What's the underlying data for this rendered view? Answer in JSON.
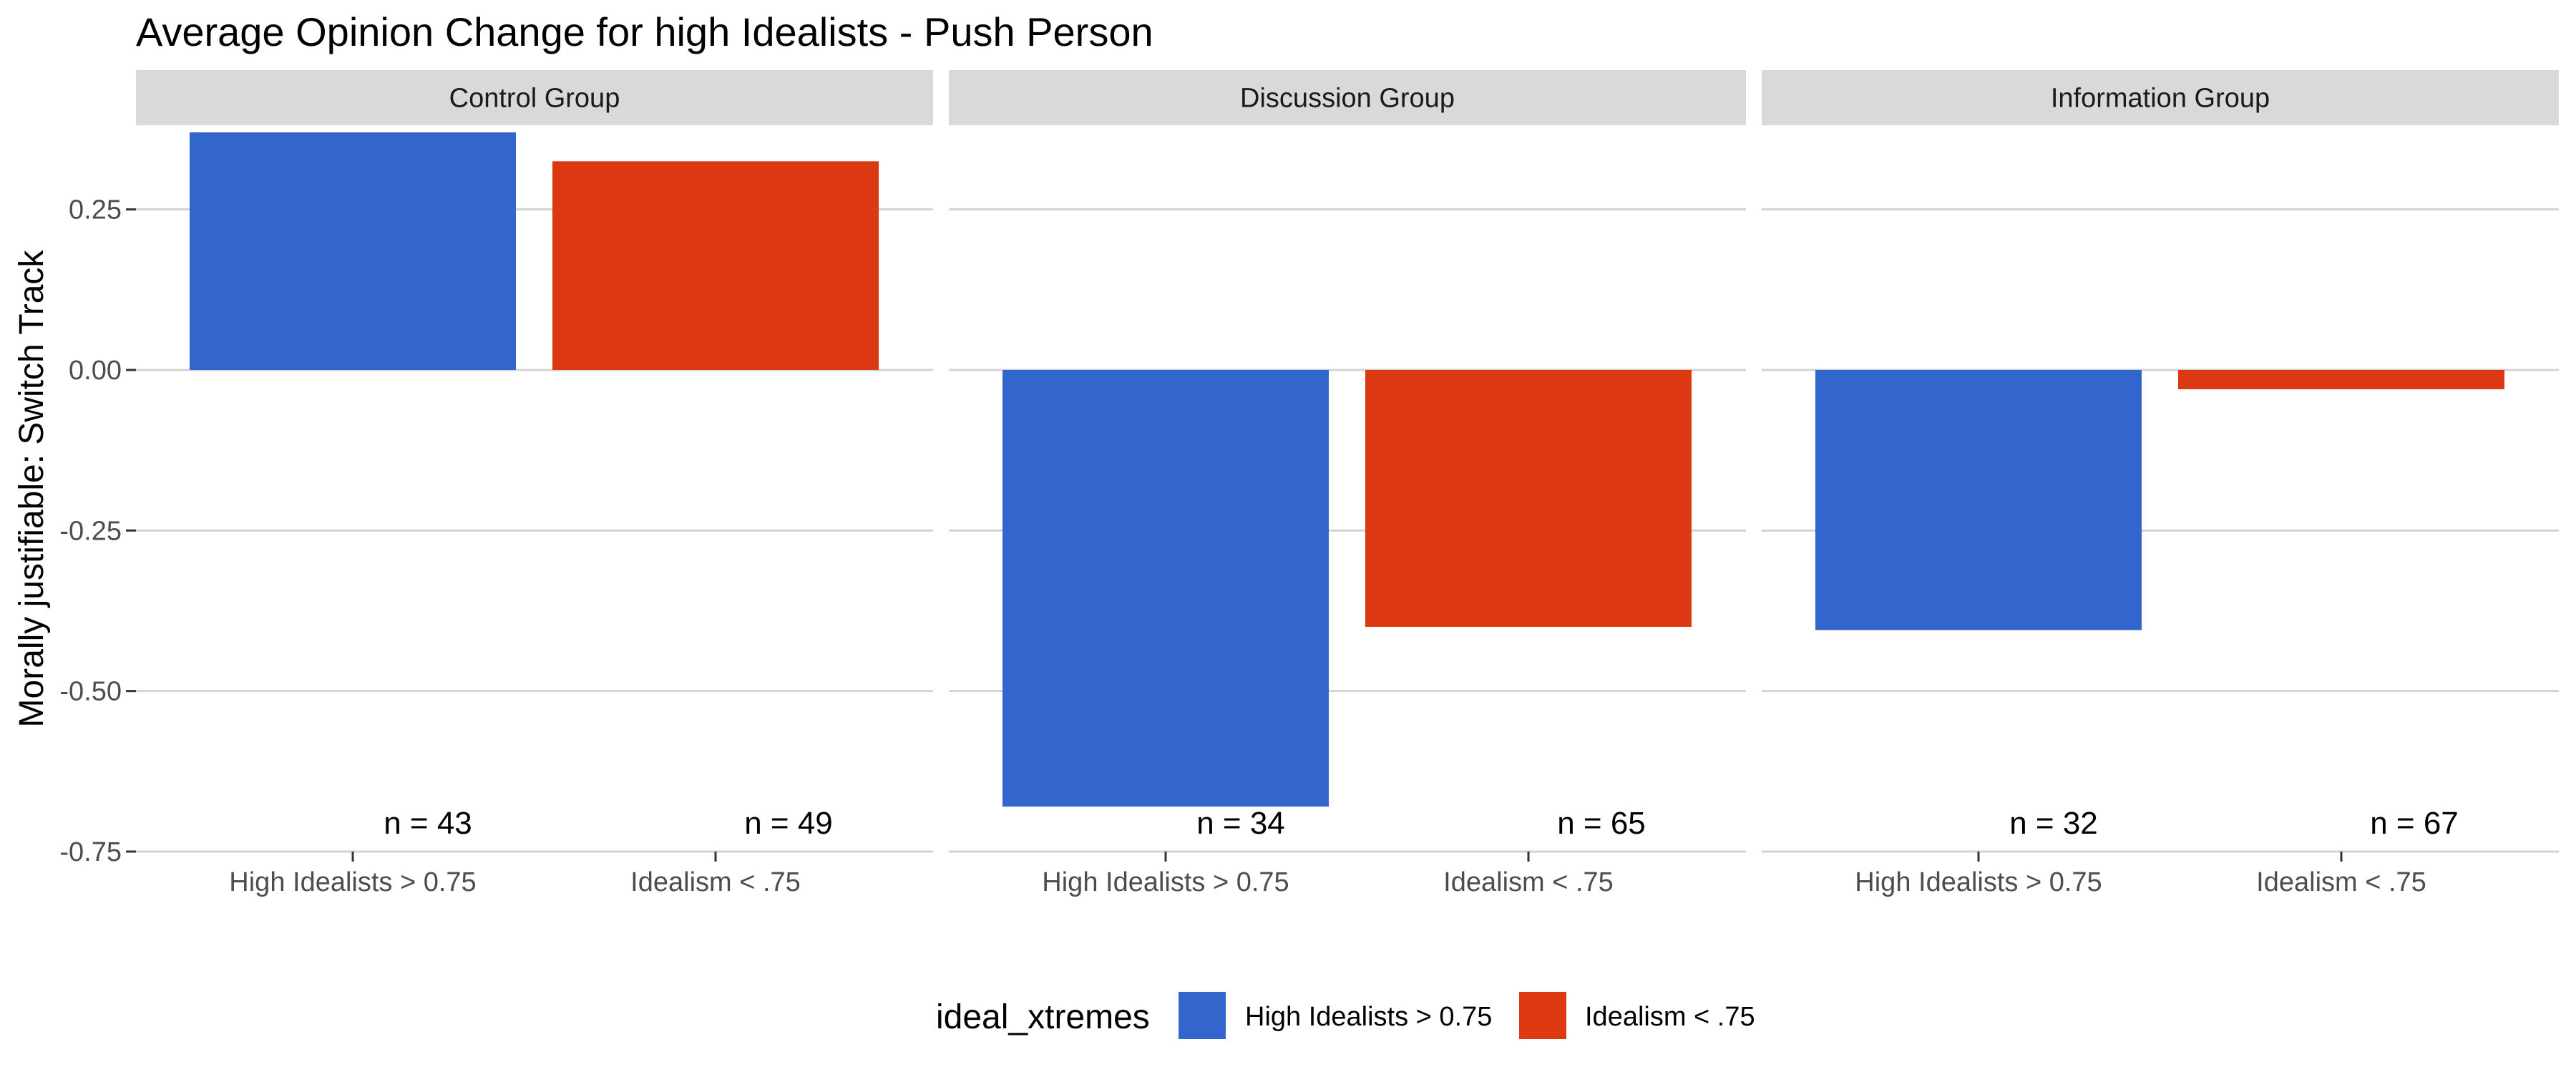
{
  "chart_data": {
    "type": "bar",
    "title": "Average Opinion Change for high Idealists - Push Person",
    "ylabel": "Morally justifiable: Switch Track",
    "xlabel": "",
    "ylim": [
      -0.75,
      0.38
    ],
    "yticks": [
      {
        "value": 0.25,
        "label": "0.25"
      },
      {
        "value": 0.0,
        "label": "0.00"
      },
      {
        "value": -0.25,
        "label": "-0.25"
      },
      {
        "value": -0.5,
        "label": "-0.50"
      },
      {
        "value": -0.75,
        "label": "-0.75"
      }
    ],
    "categories": [
      "High Idealists > 0.75",
      "Idealism < .75"
    ],
    "grid": true,
    "legend": {
      "title": "ideal_xtremes",
      "position": "bottom",
      "entries": [
        {
          "label": "High Idealists > 0.75",
          "color": "#3366CC"
        },
        {
          "label": "Idealism < .75",
          "color": "#DC3912"
        }
      ]
    },
    "panels": [
      {
        "name": "Control Group",
        "values": [
          0.37,
          0.325
        ],
        "n_labels": [
          "n = 43",
          "n = 49"
        ]
      },
      {
        "name": "Discussion Group",
        "values": [
          -0.68,
          -0.4
        ],
        "n_labels": [
          "n = 34",
          "n = 65"
        ]
      },
      {
        "name": "Information Group",
        "values": [
          -0.405,
          -0.03
        ],
        "n_labels": [
          "n = 32",
          "n = 67"
        ]
      }
    ]
  }
}
